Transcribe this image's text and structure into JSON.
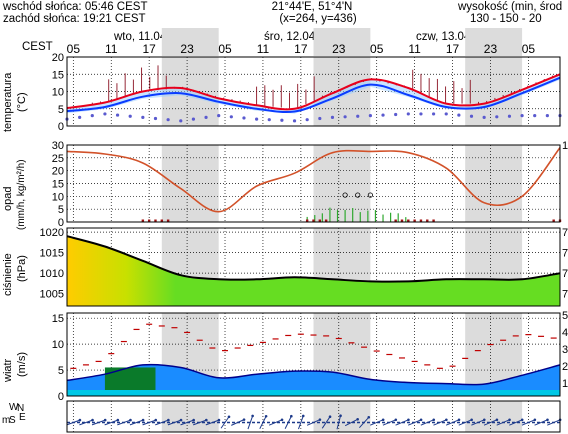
{
  "header": {
    "sunrise": "wschód słońca: 05:46 CEST",
    "sunset": "zachód słońca: 19:21 CEST",
    "coords": "21°44'E, 51°4'N",
    "grid": "(x=264,  y=436)",
    "elevation_label": "wysokość (min, środ",
    "elevation_values": "130 - 150 - 20",
    "timezone": "CEST"
  },
  "days": [
    "wto, 11.04",
    "śro, 12.04",
    "czw, 13.04"
  ],
  "hour_ticks": [
    "05",
    "11",
    "17",
    "23",
    "05",
    "11",
    "17",
    "23",
    "05",
    "11",
    "17",
    "23",
    "05"
  ],
  "panels": {
    "temperature": {
      "label": "temperatura",
      "unit": "(°C)",
      "ticks": [
        "20",
        "15",
        "10",
        "5",
        "0"
      ]
    },
    "precip": {
      "label": "opad",
      "unit": "(mm/h, kg/m²/h)",
      "ticks": [
        "30",
        "25",
        "20",
        "15",
        "10",
        "5",
        "0"
      ],
      "right_tick": "1"
    },
    "pressure": {
      "label": "ciśnienie",
      "unit": "(hPa)",
      "ticks": [
        "1020",
        "1015",
        "1010",
        "1005"
      ],
      "right_ticks": [
        "7",
        "7",
        "7",
        "7"
      ]
    },
    "wind": {
      "label": "wiatr",
      "unit": "(m/s)",
      "ticks": [
        "15",
        "10",
        "5",
        "0"
      ],
      "right_ticks": [
        "5",
        "4",
        "3",
        "2",
        "1"
      ]
    },
    "direction": {
      "label_a": "W",
      "label_b": "S",
      "label_c": "N",
      "label_d": "E",
      "label_e": "m"
    }
  },
  "colors": {
    "temp_max": "#e8001c",
    "temp_mean": "#0a3cff",
    "dew": "#5a5acf",
    "precip_line": "#d2522a",
    "precip_bars": "#2fa82f",
    "pressure_line": "#000000",
    "wind_gust": "#c00000",
    "wind_fill": "#1a8cff",
    "night_band": "#dcdcdc"
  },
  "chart_data": [
    {
      "type": "line",
      "title": "temperatura",
      "xlabel": "",
      "ylabel": "(°C)",
      "ylim": [
        0,
        20
      ],
      "x": [
        0,
        6,
        12,
        18,
        24,
        30,
        36,
        42,
        48,
        54,
        60,
        66,
        72,
        78
      ],
      "series": [
        {
          "values": [
            5.2,
            6.8,
            10.0,
            11.0,
            8.0,
            6.0,
            5.0,
            9.5,
            13.5,
            11.0,
            6.5,
            6.5,
            10.5,
            15.0
          ]
        },
        {
          "values": [
            4.3,
            5.5,
            8.5,
            9.5,
            7.0,
            5.0,
            4.2,
            8.0,
            12.0,
            9.0,
            5.5,
            5.5,
            9.5,
            14.0
          ]
        },
        {
          "values": [
            2.0,
            3.5,
            2.5,
            1.5,
            3.0,
            2.0,
            1.5,
            2.5,
            3.0,
            3.5,
            3.5,
            2.5,
            3.0,
            3.0
          ]
        }
      ]
    },
    {
      "type": "line",
      "title": "opad",
      "xlabel": "",
      "ylabel": "(mm/h, kg/m²/h)",
      "ylim": [
        0,
        30
      ],
      "x": [
        0,
        6,
        12,
        18,
        24,
        30,
        36,
        42,
        48,
        54,
        60,
        66,
        72,
        78
      ],
      "series": [
        {
          "values": [
            27.5,
            26.5,
            23.0,
            13.0,
            4.0,
            14.0,
            19.0,
            27.0,
            27.5,
            27.0,
            21.0,
            7.5,
            10.0,
            29.0
          ]
        },
        {
          "values": [
            0,
            0,
            0,
            0,
            0,
            0,
            0,
            6,
            5,
            3,
            0,
            0,
            0,
            0
          ]
        }
      ]
    },
    {
      "type": "area",
      "title": "ciśnienie",
      "xlabel": "",
      "ylabel": "(hPa)",
      "ylim": [
        1002,
        1021
      ],
      "x": [
        0,
        6,
        12,
        18,
        24,
        30,
        36,
        42,
        48,
        54,
        60,
        66,
        72,
        78
      ],
      "values": [
        1019.0,
        1016.5,
        1013.0,
        1009.5,
        1008.5,
        1008.5,
        1009.0,
        1008.5,
        1008.0,
        1008.0,
        1008.5,
        1008.5,
        1008.5,
        1010.0
      ]
    },
    {
      "type": "area",
      "title": "wiatr",
      "xlabel": "",
      "ylabel": "(m/s)",
      "ylim": [
        0,
        16
      ],
      "x": [
        0,
        6,
        12,
        18,
        24,
        30,
        36,
        42,
        48,
        54,
        60,
        66,
        72,
        78
      ],
      "series": [
        {
          "values": [
            5.0,
            7.0,
            14.0,
            13.0,
            8.5,
            10.0,
            12.0,
            11.5,
            9.0,
            7.0,
            5.0,
            9.5,
            12.0,
            11.0
          ]
        },
        {
          "values": [
            3.0,
            4.2,
            6.0,
            5.5,
            3.5,
            4.2,
            4.8,
            4.6,
            3.2,
            2.6,
            2.4,
            2.3,
            4.0,
            6.0
          ]
        }
      ]
    }
  ]
}
